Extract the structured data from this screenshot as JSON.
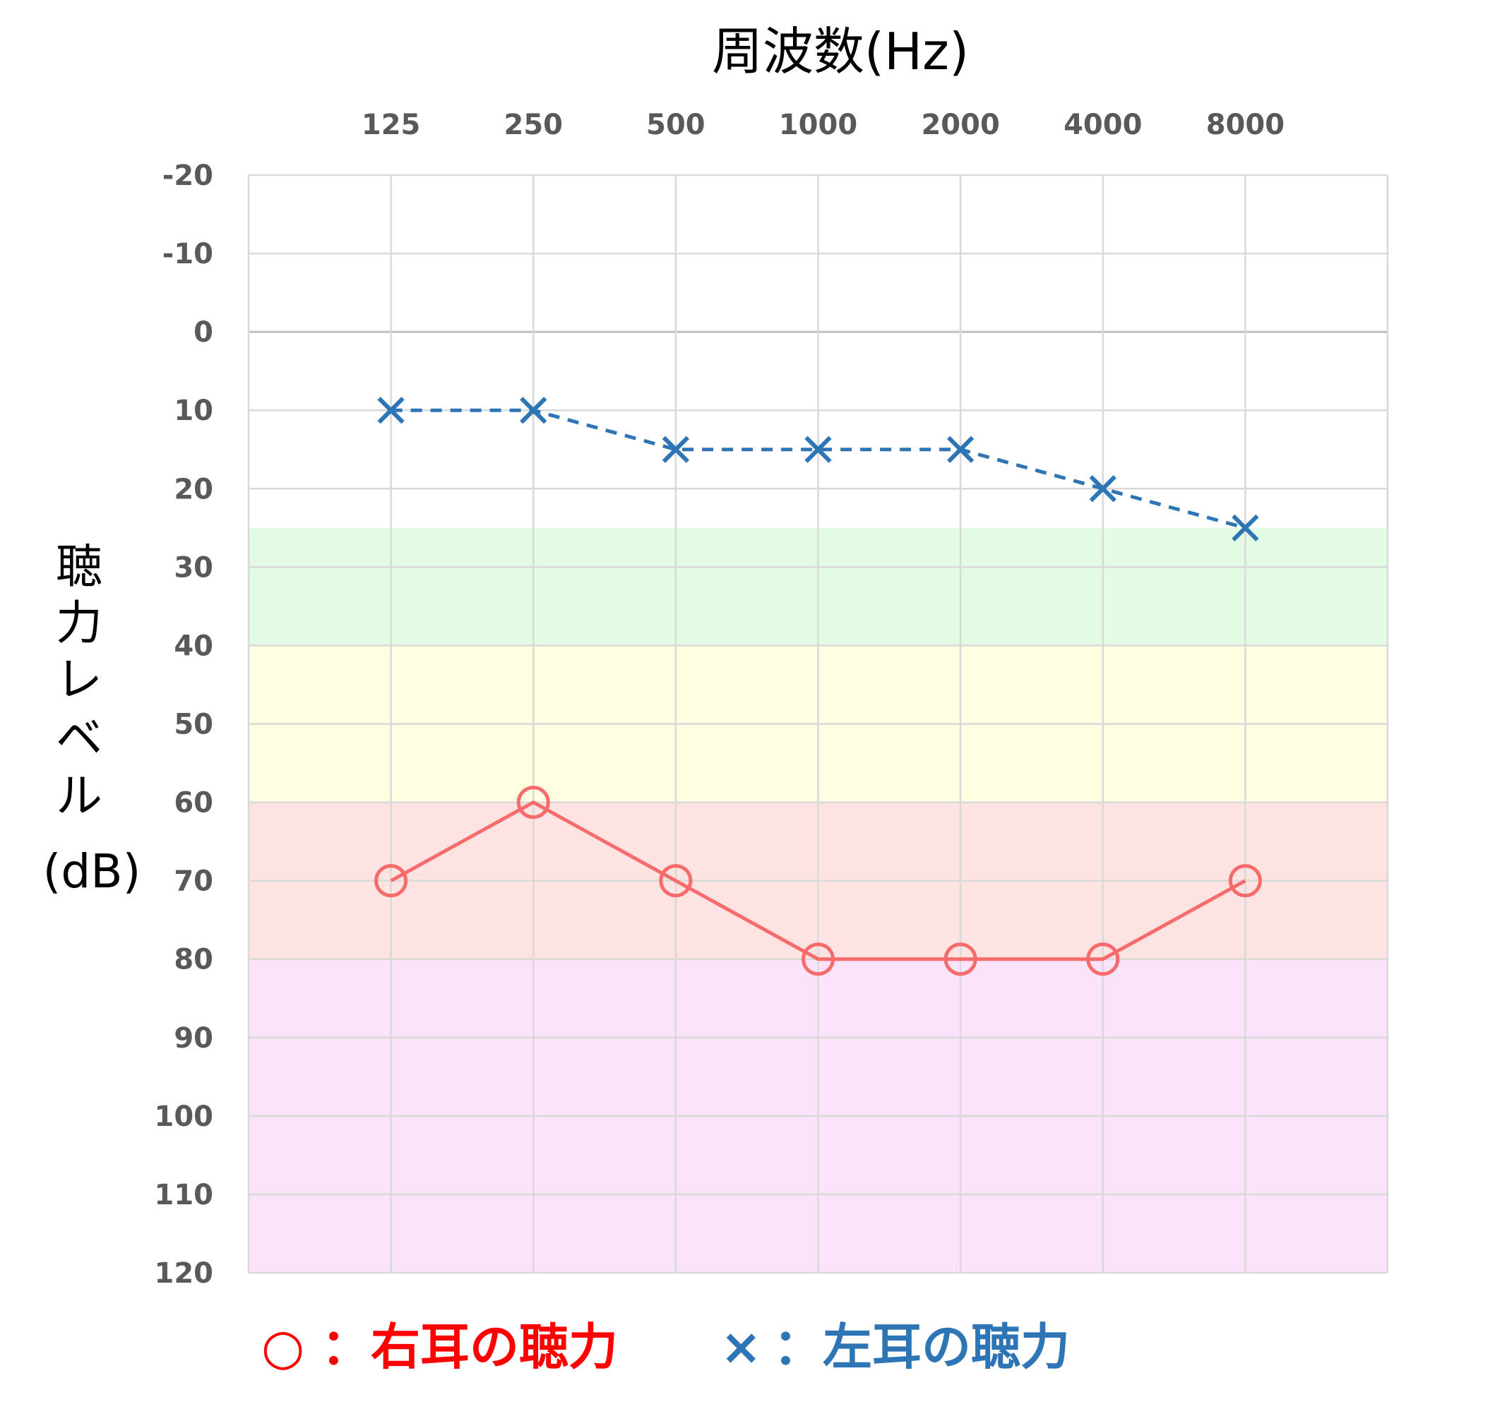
{
  "chart_data": {
    "type": "line",
    "title": "",
    "xlabel": "周波数(Hz)",
    "ylabel_lines": [
      "聴",
      "力",
      "レ",
      "ベ",
      "ル",
      "(dB)"
    ],
    "categories": [
      "125",
      "250",
      "500",
      "1000",
      "2000",
      "4000",
      "8000"
    ],
    "ylim": [
      -20,
      120
    ],
    "y_reversed": true,
    "y_ticks": [
      -20,
      -10,
      0,
      10,
      20,
      30,
      40,
      50,
      60,
      70,
      80,
      90,
      100,
      110,
      120
    ],
    "x_position": "top",
    "grid": true,
    "bands": [
      {
        "from": 25,
        "to": 40,
        "color": "#e2fbe2"
      },
      {
        "from": 40,
        "to": 60,
        "color": "#fefee0"
      },
      {
        "from": 60,
        "to": 80,
        "color": "#fde3e1"
      },
      {
        "from": 80,
        "to": 120,
        "color": "#fbe4fb"
      }
    ],
    "series": [
      {
        "key": "right",
        "marker": "circle",
        "line": "solid",
        "color": "#f76b6b",
        "values": [
          70,
          60,
          70,
          80,
          80,
          80,
          70
        ]
      },
      {
        "key": "left",
        "marker": "x",
        "line": "dashed",
        "color": "#2e75b6",
        "values": [
          10,
          10,
          15,
          15,
          15,
          20,
          25
        ]
      }
    ],
    "legend": {
      "placement": "bottom",
      "items": [
        {
          "symbol": "○",
          "text": "：右耳の聴力",
          "color": "#ff0000"
        },
        {
          "symbol": "×",
          "text": "：左耳の聴力",
          "color": "#2e75b6"
        }
      ]
    }
  }
}
